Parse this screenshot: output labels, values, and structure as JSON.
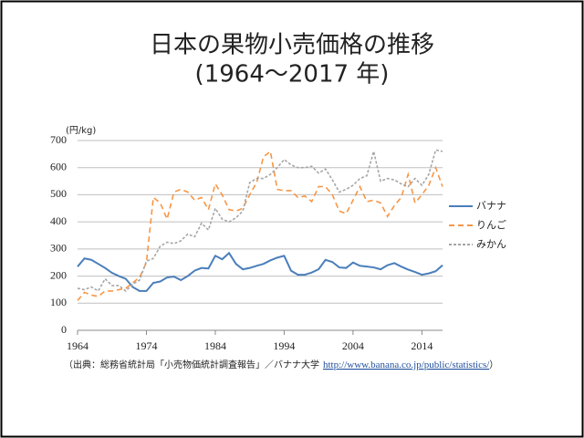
{
  "chart_data": {
    "type": "line",
    "title": "日本の果物小売価格の推移",
    "subtitle": "(1964〜2017 年)",
    "y_label": "(円/kg)",
    "x": [
      1964,
      1965,
      1966,
      1967,
      1968,
      1969,
      1970,
      1971,
      1972,
      1973,
      1974,
      1975,
      1976,
      1977,
      1978,
      1979,
      1980,
      1981,
      1982,
      1983,
      1984,
      1985,
      1986,
      1987,
      1988,
      1989,
      1990,
      1991,
      1992,
      1993,
      1994,
      1995,
      1996,
      1997,
      1998,
      1999,
      2000,
      2001,
      2002,
      2003,
      2004,
      2005,
      2006,
      2007,
      2008,
      2009,
      2010,
      2011,
      2012,
      2013,
      2014,
      2015,
      2016,
      2017
    ],
    "xlim": [
      1964,
      2017
    ],
    "xticks": [
      1964,
      1974,
      1984,
      1994,
      2004,
      2014
    ],
    "ylim": [
      0,
      700
    ],
    "yticks": [
      0,
      100,
      200,
      300,
      400,
      500,
      600,
      700
    ],
    "grid": true,
    "legend": "right",
    "series": [
      {
        "name": "バナナ",
        "color": "#4a7ebb",
        "dash": "solid",
        "values": [
          235,
          265,
          260,
          245,
          230,
          212,
          200,
          190,
          160,
          145,
          145,
          175,
          180,
          195,
          198,
          185,
          200,
          220,
          230,
          228,
          275,
          262,
          285,
          245,
          225,
          230,
          238,
          245,
          258,
          268,
          275,
          220,
          205,
          205,
          213,
          225,
          260,
          252,
          232,
          230,
          250,
          238,
          235,
          232,
          225,
          240,
          248,
          235,
          224,
          215,
          205,
          210,
          218,
          240
        ]
      },
      {
        "name": "りんご",
        "color": "#f79646",
        "dash": "dashed",
        "values": [
          110,
          140,
          130,
          125,
          145,
          145,
          150,
          155,
          175,
          195,
          250,
          490,
          470,
          410,
          510,
          520,
          510,
          480,
          490,
          445,
          540,
          500,
          445,
          440,
          450,
          500,
          545,
          640,
          660,
          520,
          515,
          515,
          490,
          495,
          475,
          530,
          530,
          500,
          440,
          430,
          480,
          530,
          475,
          480,
          470,
          420,
          460,
          490,
          575,
          470,
          500,
          535,
          600,
          530
        ]
      },
      {
        "name": "みかん",
        "color": "#a6a6a6",
        "dash": "dashed",
        "values": [
          155,
          150,
          160,
          145,
          190,
          165,
          165,
          145,
          170,
          185,
          255,
          265,
          310,
          325,
          320,
          330,
          355,
          345,
          395,
          370,
          450,
          410,
          400,
          415,
          440,
          545,
          560,
          560,
          575,
          600,
          630,
          610,
          600,
          600,
          605,
          580,
          595,
          555,
          510,
          520,
          535,
          560,
          570,
          660,
          550,
          560,
          555,
          540,
          530,
          560,
          535,
          575,
          665,
          660
        ]
      }
    ],
    "source": [
      "（出典：総務省統計局「小売物価統計調査報告」／バナナ大学",
      "http://www.banana.co.jp/public/statistics/",
      "）"
    ]
  }
}
